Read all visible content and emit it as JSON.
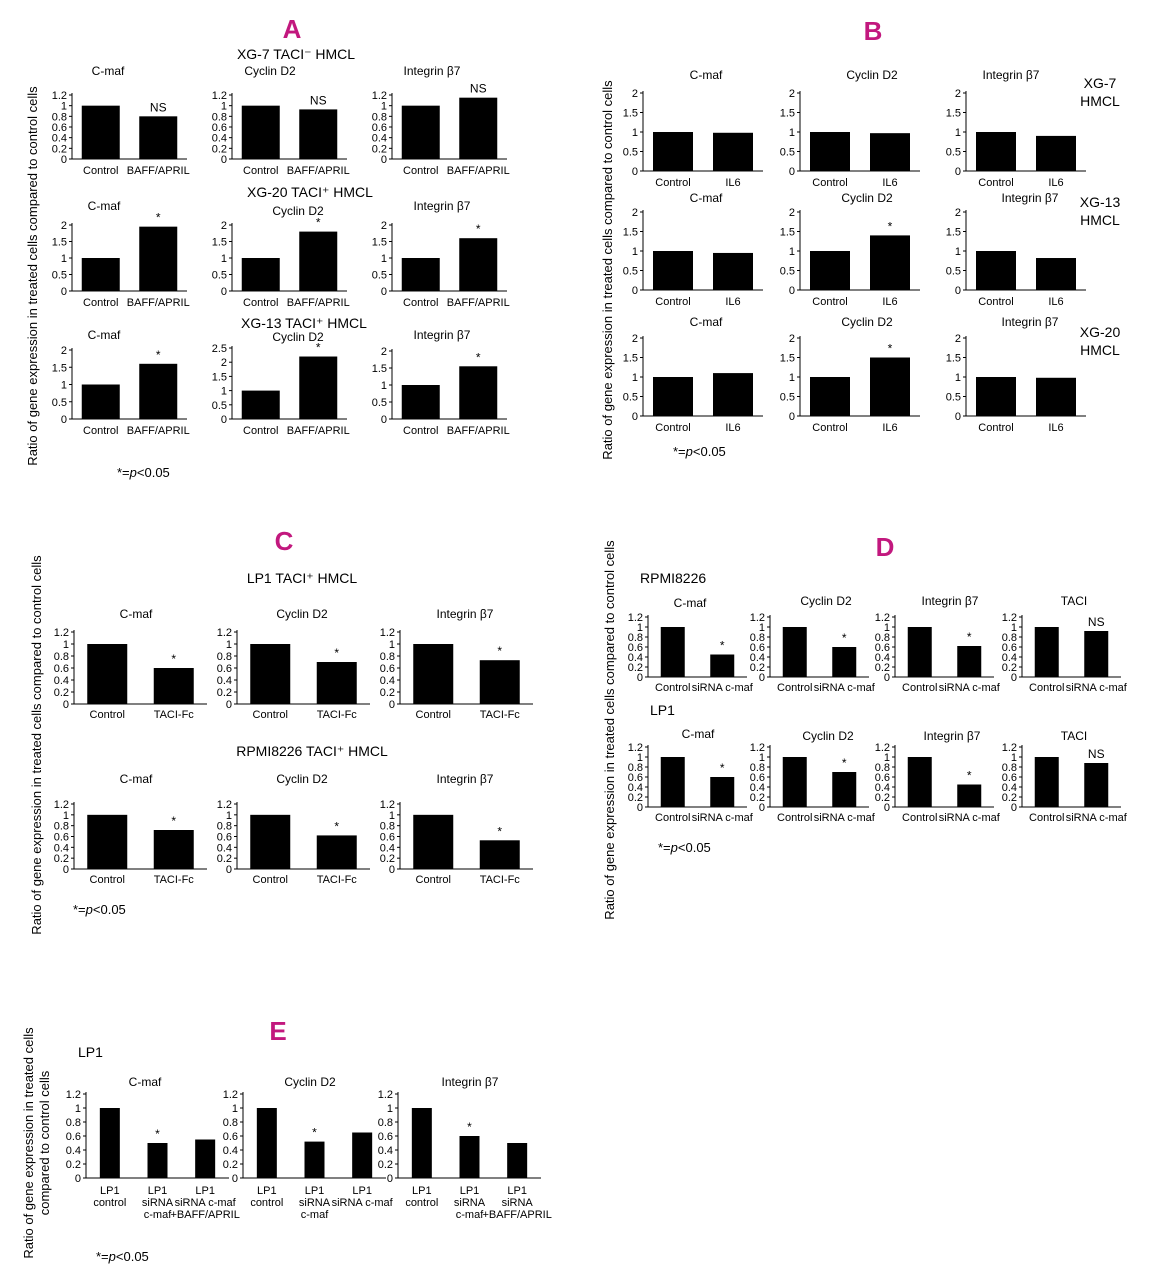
{
  "colors": {
    "panel_letter": "#c2187e",
    "bar": "#000000"
  },
  "figure": {
    "ylabel_main": "Ratio of gene expression in treated cells compared to control cells",
    "ylabel_e_line1": "Ratio of gene expression in treated cells",
    "ylabel_e_line2": "compared to control cells",
    "sig_note_star": "*=",
    "sig_note_p": "p",
    "sig_note_rest": "<0.05"
  },
  "panels": {
    "A": {
      "letter": "A",
      "row_titles": [
        "XG-7 TACI⁻ HMCL",
        "XG-20 TACI⁺ HMCL",
        "XG-13 TACI⁺ HMCL"
      ]
    },
    "B": {
      "letter": "B",
      "row_labels": [
        [
          "XG-7",
          "HMCL"
        ],
        [
          "XG-13",
          "HMCL"
        ],
        [
          "XG-20",
          "HMCL"
        ]
      ]
    },
    "C": {
      "letter": "C",
      "row_titles": [
        "LP1 TACI⁺ HMCL",
        "RPMI8226 TACI⁺ HMCL"
      ]
    },
    "D": {
      "letter": "D",
      "row_titles": [
        "RPMI8226",
        "LP1"
      ]
    },
    "E": {
      "letter": "E",
      "row_titles": [
        "LP1"
      ]
    }
  },
  "chart_data": [
    {
      "id": "A1",
      "panel": "A",
      "type": "bar",
      "title": "C-maf",
      "categories": [
        "Control",
        "BAFF/APRIL"
      ],
      "values": [
        1.0,
        0.8
      ],
      "ylim": [
        0,
        1.2
      ],
      "yticks": [
        "0",
        "0.2",
        "0.4",
        "0.6",
        "0.8",
        "1",
        "1.2"
      ],
      "annotations": [
        "",
        "NS"
      ]
    },
    {
      "id": "A2",
      "panel": "A",
      "type": "bar",
      "title": "Cyclin D2",
      "categories": [
        "Control",
        "BAFF/APRIL"
      ],
      "values": [
        1.0,
        0.93
      ],
      "ylim": [
        0,
        1.2
      ],
      "yticks": [
        "0",
        "0.2",
        "0.4",
        "0.6",
        "0.8",
        "1",
        "1.2"
      ],
      "annotations": [
        "",
        "NS"
      ]
    },
    {
      "id": "A3",
      "panel": "A",
      "type": "bar",
      "title": "Integrin β7",
      "categories": [
        "Control",
        "BAFF/APRIL"
      ],
      "values": [
        1.0,
        1.15
      ],
      "ylim": [
        0,
        1.2
      ],
      "yticks": [
        "0",
        "0.2",
        "0.4",
        "0.6",
        "0.8",
        "1",
        "1.2"
      ],
      "annotations": [
        "",
        "NS"
      ]
    },
    {
      "id": "A4",
      "panel": "A",
      "type": "bar",
      "title": "C-maf",
      "categories": [
        "Control",
        "BAFF/APRIL"
      ],
      "values": [
        1.0,
        1.95
      ],
      "ylim": [
        0,
        2
      ],
      "yticks": [
        "0",
        "0.5",
        "1",
        "1.5",
        "2"
      ],
      "annotations": [
        "",
        "*"
      ]
    },
    {
      "id": "A5",
      "panel": "A",
      "type": "bar",
      "title": "Cyclin D2",
      "categories": [
        "Control",
        "BAFF/APRIL"
      ],
      "values": [
        1.0,
        1.8
      ],
      "ylim": [
        0,
        2
      ],
      "yticks": [
        "0",
        "0.5",
        "1",
        "1.5",
        "2"
      ],
      "annotations": [
        "",
        "*"
      ]
    },
    {
      "id": "A6",
      "panel": "A",
      "type": "bar",
      "title": "Integrin β7",
      "categories": [
        "Control",
        "BAFF/APRIL"
      ],
      "values": [
        1.0,
        1.6
      ],
      "ylim": [
        0,
        2
      ],
      "yticks": [
        "0",
        "0.5",
        "1",
        "1.5",
        "2"
      ],
      "annotations": [
        "",
        "*"
      ]
    },
    {
      "id": "A7",
      "panel": "A",
      "type": "bar",
      "title": "C-maf",
      "categories": [
        "Control",
        "BAFF/APRIL"
      ],
      "values": [
        1.0,
        1.6
      ],
      "ylim": [
        0,
        2
      ],
      "yticks": [
        "0",
        "0.5",
        "1",
        "1.5",
        "2"
      ],
      "annotations": [
        "",
        "*"
      ]
    },
    {
      "id": "A8",
      "panel": "A",
      "type": "bar",
      "title": "Cyclin D2",
      "categories": [
        "Control",
        "BAFF/APRIL"
      ],
      "values": [
        1.0,
        2.2
      ],
      "ylim": [
        0,
        2.5
      ],
      "yticks": [
        "0",
        "0.5",
        "1",
        "1.5",
        "2",
        "2.5"
      ],
      "annotations": [
        "",
        "*"
      ]
    },
    {
      "id": "A9",
      "panel": "A",
      "type": "bar",
      "title": "Integrin β7",
      "categories": [
        "Control",
        "BAFF/APRIL"
      ],
      "values": [
        1.0,
        1.55
      ],
      "ylim": [
        0,
        2
      ],
      "yticks": [
        "0",
        "0.5",
        "1",
        "1.5",
        "2"
      ],
      "annotations": [
        "",
        "*"
      ]
    },
    {
      "id": "B1",
      "panel": "B",
      "type": "bar",
      "title": "C-maf",
      "categories": [
        "Control",
        "IL6"
      ],
      "values": [
        1.0,
        0.98
      ],
      "ylim": [
        0,
        2
      ],
      "yticks": [
        "0",
        "0.5",
        "1",
        "1.5",
        "2"
      ],
      "annotations": [
        "",
        ""
      ]
    },
    {
      "id": "B2",
      "panel": "B",
      "type": "bar",
      "title": "Cyclin D2",
      "categories": [
        "Control",
        "IL6"
      ],
      "values": [
        1.0,
        0.97
      ],
      "ylim": [
        0,
        2
      ],
      "yticks": [
        "0",
        "0.5",
        "1",
        "1.5",
        "2"
      ],
      "annotations": [
        "",
        ""
      ]
    },
    {
      "id": "B3",
      "panel": "B",
      "type": "bar",
      "title": "Integrin β7",
      "categories": [
        "Control",
        "IL6"
      ],
      "values": [
        1.0,
        0.9
      ],
      "ylim": [
        0,
        2
      ],
      "yticks": [
        "0",
        "0.5",
        "1",
        "1.5",
        "2"
      ],
      "annotations": [
        "",
        ""
      ]
    },
    {
      "id": "B4",
      "panel": "B",
      "type": "bar",
      "title": "C-maf",
      "categories": [
        "Control",
        "IL6"
      ],
      "values": [
        1.0,
        0.95
      ],
      "ylim": [
        0,
        2
      ],
      "yticks": [
        "0",
        "0.5",
        "1",
        "1.5",
        "2"
      ],
      "annotations": [
        "",
        ""
      ]
    },
    {
      "id": "B5",
      "panel": "B",
      "type": "bar",
      "title": "Cyclin D2",
      "categories": [
        "Control",
        "IL6"
      ],
      "values": [
        1.0,
        1.4
      ],
      "ylim": [
        0,
        2
      ],
      "yticks": [
        "0",
        "0.5",
        "1",
        "1.5",
        "2"
      ],
      "annotations": [
        "",
        "*"
      ]
    },
    {
      "id": "B6",
      "panel": "B",
      "type": "bar",
      "title": "Integrin β7",
      "categories": [
        "Control",
        "IL6"
      ],
      "values": [
        1.0,
        0.82
      ],
      "ylim": [
        0,
        2
      ],
      "yticks": [
        "0",
        "0.5",
        "1",
        "1.5",
        "2"
      ],
      "annotations": [
        "",
        ""
      ]
    },
    {
      "id": "B7",
      "panel": "B",
      "type": "bar",
      "title": "C-maf",
      "categories": [
        "Control",
        "IL6"
      ],
      "values": [
        1.0,
        1.1
      ],
      "ylim": [
        0,
        2
      ],
      "yticks": [
        "0",
        "0.5",
        "1",
        "1.5",
        "2"
      ],
      "annotations": [
        "",
        ""
      ]
    },
    {
      "id": "B8",
      "panel": "B",
      "type": "bar",
      "title": "Cyclin D2",
      "categories": [
        "Control",
        "IL6"
      ],
      "values": [
        1.0,
        1.5
      ],
      "ylim": [
        0,
        2
      ],
      "yticks": [
        "0",
        "0.5",
        "1",
        "1.5",
        "2"
      ],
      "annotations": [
        "",
        "*"
      ]
    },
    {
      "id": "B9",
      "panel": "B",
      "type": "bar",
      "title": "Integrin β7",
      "categories": [
        "Control",
        "IL6"
      ],
      "values": [
        1.0,
        0.98
      ],
      "ylim": [
        0,
        2
      ],
      "yticks": [
        "0",
        "0.5",
        "1",
        "1.5",
        "2"
      ],
      "annotations": [
        "",
        ""
      ]
    },
    {
      "id": "C1",
      "panel": "C",
      "type": "bar",
      "title": "C-maf",
      "categories": [
        "Control",
        "TACI-Fc"
      ],
      "values": [
        1.0,
        0.6
      ],
      "ylim": [
        0,
        1.2
      ],
      "yticks": [
        "0",
        "0.2",
        "0.4",
        "0.6",
        "0.8",
        "1",
        "1.2"
      ],
      "annotations": [
        "",
        "*"
      ]
    },
    {
      "id": "C2",
      "panel": "C",
      "type": "bar",
      "title": "Cyclin D2",
      "categories": [
        "Control",
        "TACI-Fc"
      ],
      "values": [
        1.0,
        0.7
      ],
      "ylim": [
        0,
        1.2
      ],
      "yticks": [
        "0",
        "0.2",
        "0.4",
        "0.6",
        "0.8",
        "1",
        "1.2"
      ],
      "annotations": [
        "",
        "*"
      ]
    },
    {
      "id": "C3",
      "panel": "C",
      "type": "bar",
      "title": "Integrin β7",
      "categories": [
        "Control",
        "TACI-Fc"
      ],
      "values": [
        1.0,
        0.73
      ],
      "ylim": [
        0,
        1.2
      ],
      "yticks": [
        "0",
        "0.2",
        "0.4",
        "0.6",
        "0.8",
        "1",
        "1.2"
      ],
      "annotations": [
        "",
        "*"
      ]
    },
    {
      "id": "C4",
      "panel": "C",
      "type": "bar",
      "title": "C-maf",
      "categories": [
        "Control",
        "TACI-Fc"
      ],
      "values": [
        1.0,
        0.72
      ],
      "ylim": [
        0,
        1.2
      ],
      "yticks": [
        "0",
        "0.2",
        "0.4",
        "0.6",
        "0.8",
        "1",
        "1.2"
      ],
      "annotations": [
        "",
        "*"
      ]
    },
    {
      "id": "C5",
      "panel": "C",
      "type": "bar",
      "title": "Cyclin D2",
      "categories": [
        "Control",
        "TACI-Fc"
      ],
      "values": [
        1.0,
        0.62
      ],
      "ylim": [
        0,
        1.2
      ],
      "yticks": [
        "0",
        "0.2",
        "0.4",
        "0.6",
        "0.8",
        "1",
        "1.2"
      ],
      "annotations": [
        "",
        "*"
      ]
    },
    {
      "id": "C6",
      "panel": "C",
      "type": "bar",
      "title": "Integrin β7",
      "categories": [
        "Control",
        "TACI-Fc"
      ],
      "values": [
        1.0,
        0.53
      ],
      "ylim": [
        0,
        1.2
      ],
      "yticks": [
        "0",
        "0.2",
        "0.4",
        "0.6",
        "0.8",
        "1",
        "1.2"
      ],
      "annotations": [
        "",
        "*"
      ]
    },
    {
      "id": "D1",
      "panel": "D",
      "type": "bar",
      "title": "C-maf",
      "categories": [
        "Control",
        "siRNA c-maf"
      ],
      "values": [
        1.0,
        0.45
      ],
      "ylim": [
        0,
        1.2
      ],
      "yticks": [
        "0",
        "0.2",
        "0.4",
        "0.6",
        "0.8",
        "1",
        "1.2"
      ],
      "annotations": [
        "",
        "*"
      ]
    },
    {
      "id": "D2",
      "panel": "D",
      "type": "bar",
      "title": "Cyclin D2",
      "categories": [
        "Control",
        "siRNA c-maf"
      ],
      "values": [
        1.0,
        0.6
      ],
      "ylim": [
        0,
        1.2
      ],
      "yticks": [
        "0",
        "0.2",
        "0.4",
        "0.6",
        "0.8",
        "1",
        "1.2"
      ],
      "annotations": [
        "",
        "*"
      ]
    },
    {
      "id": "D3",
      "panel": "D",
      "type": "bar",
      "title": "Integrin β7",
      "categories": [
        "Control",
        "siRNA c-maf"
      ],
      "values": [
        1.0,
        0.62
      ],
      "ylim": [
        0,
        1.2
      ],
      "yticks": [
        "0",
        "0.2",
        "0.4",
        "0.6",
        "0.8",
        "1",
        "1.2"
      ],
      "annotations": [
        "",
        "*"
      ]
    },
    {
      "id": "D4",
      "panel": "D",
      "type": "bar",
      "title": "TACI",
      "categories": [
        "Control",
        "siRNA c-maf"
      ],
      "values": [
        1.0,
        0.92
      ],
      "ylim": [
        0,
        1.2
      ],
      "yticks": [
        "0",
        "0.2",
        "0.4",
        "0.6",
        "0.8",
        "1",
        "1.2"
      ],
      "annotations": [
        "",
        "NS"
      ]
    },
    {
      "id": "D5",
      "panel": "D",
      "type": "bar",
      "title": "C-maf",
      "categories": [
        "Control",
        "siRNA c-maf"
      ],
      "values": [
        1.0,
        0.6
      ],
      "ylim": [
        0,
        1.2
      ],
      "yticks": [
        "0",
        "0.2",
        "0.4",
        "0.6",
        "0.8",
        "1",
        "1.2"
      ],
      "annotations": [
        "",
        "*"
      ]
    },
    {
      "id": "D6",
      "panel": "D",
      "type": "bar",
      "title": "Cyclin D2",
      "categories": [
        "Control",
        "siRNA c-maf"
      ],
      "values": [
        1.0,
        0.7
      ],
      "ylim": [
        0,
        1.2
      ],
      "yticks": [
        "0",
        "0.2",
        "0.4",
        "0.6",
        "0.8",
        "1",
        "1.2"
      ],
      "annotations": [
        "",
        "*"
      ]
    },
    {
      "id": "D7",
      "panel": "D",
      "type": "bar",
      "title": "Integrin β7",
      "categories": [
        "Control",
        "siRNA c-maf"
      ],
      "values": [
        1.0,
        0.45
      ],
      "ylim": [
        0,
        1.2
      ],
      "yticks": [
        "0",
        "0.2",
        "0.4",
        "0.6",
        "0.8",
        "1",
        "1.2"
      ],
      "annotations": [
        "",
        "*"
      ]
    },
    {
      "id": "D8",
      "panel": "D",
      "type": "bar",
      "title": "TACI",
      "categories": [
        "Control",
        "siRNA c-maf"
      ],
      "values": [
        1.0,
        0.88
      ],
      "ylim": [
        0,
        1.2
      ],
      "yticks": [
        "0",
        "0.2",
        "0.4",
        "0.6",
        "0.8",
        "1",
        "1.2"
      ],
      "annotations": [
        "",
        "NS"
      ]
    },
    {
      "id": "E1",
      "panel": "E",
      "type": "bar",
      "title": "C-maf",
      "categories": [
        [
          "LP1",
          "control"
        ],
        [
          "LP1",
          "siRNA",
          "c-maf"
        ],
        [
          "LP1",
          "siRNA c-maf",
          "+BAFF/APRIL"
        ]
      ],
      "values": [
        1.0,
        0.5,
        0.55
      ],
      "ylim": [
        0,
        1.2
      ],
      "yticks": [
        "0",
        "0.2",
        "0.4",
        "0.6",
        "0.8",
        "1",
        "1.2"
      ],
      "annotations": [
        "",
        "*",
        ""
      ]
    },
    {
      "id": "E2",
      "panel": "E",
      "type": "bar",
      "title": "Cyclin D2",
      "categories": [
        [
          "LP1",
          "control"
        ],
        [
          "LP1",
          "siRNA",
          "c-maf"
        ],
        [
          "LP1",
          "siRNA c-maf"
        ]
      ],
      "values": [
        1.0,
        0.52,
        0.65
      ],
      "ylim": [
        0,
        1.2
      ],
      "yticks": [
        "0",
        "0.2",
        "0.4",
        "0.6",
        "0.8",
        "1",
        "1.2"
      ],
      "annotations": [
        "",
        "*",
        ""
      ]
    },
    {
      "id": "E3",
      "panel": "E",
      "type": "bar",
      "title": "Integrin β7",
      "categories": [
        [
          "LP1",
          "control"
        ],
        [
          "LP1",
          "siRNA",
          "c-maf"
        ],
        [
          "LP1",
          "siRNA",
          "+BAFF/APRIL"
        ]
      ],
      "values": [
        1.0,
        0.6,
        0.5
      ],
      "ylim": [
        0,
        1.2
      ],
      "yticks": [
        "0",
        "0.2",
        "0.4",
        "0.6",
        "0.8",
        "1",
        "1.2"
      ],
      "annotations": [
        "",
        "*",
        ""
      ]
    }
  ]
}
